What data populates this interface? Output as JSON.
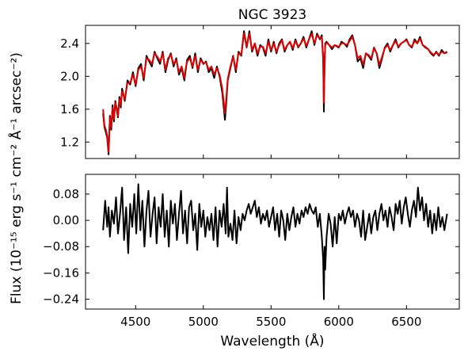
{
  "chart_data": [
    {
      "type": "line",
      "title": "NGC 3923",
      "xlabel": "",
      "ylabel": "",
      "xlim": [
        4130,
        6890
      ],
      "ylim": [
        1.0,
        2.62
      ],
      "xticks": [
        4500,
        5000,
        5500,
        6000,
        6500
      ],
      "yticks": [
        1.2,
        1.6,
        2.0,
        2.4
      ],
      "ytick_labels": [
        "1.2",
        "1.6",
        "2.0",
        "2.4"
      ],
      "shared_ylabel": "Flux (10⁻¹⁵ erg s⁻¹ cm⁻² Å⁻¹ arcsec⁻²)",
      "series": [
        {
          "color": "#000000",
          "x": [
            4260,
            4270,
            4280,
            4290,
            4300,
            4310,
            4320,
            4330,
            4340,
            4350,
            4360,
            4370,
            4380,
            4390,
            4400,
            4420,
            4440,
            4460,
            4480,
            4500,
            4520,
            4540,
            4560,
            4580,
            4600,
            4620,
            4640,
            4660,
            4680,
            4700,
            4720,
            4740,
            4760,
            4780,
            4800,
            4820,
            4840,
            4860,
            4870,
            4880,
            4900,
            4920,
            4940,
            4960,
            4980,
            5000,
            5020,
            5040,
            5060,
            5080,
            5100,
            5120,
            5140,
            5160,
            5170,
            5180,
            5200,
            5220,
            5240,
            5260,
            5280,
            5300,
            5320,
            5340,
            5360,
            5380,
            5400,
            5420,
            5440,
            5460,
            5480,
            5500,
            5520,
            5540,
            5560,
            5580,
            5600,
            5620,
            5640,
            5660,
            5680,
            5700,
            5720,
            5740,
            5760,
            5780,
            5800,
            5820,
            5840,
            5860,
            5875,
            5885,
            5890,
            5895,
            5900,
            5910,
            5930,
            5950,
            5970,
            6000,
            6020,
            6040,
            6060,
            6080,
            6100,
            6120,
            6140,
            6160,
            6180,
            6200,
            6220,
            6240,
            6260,
            6280,
            6300,
            6320,
            6340,
            6360,
            6380,
            6400,
            6420,
            6440,
            6460,
            6480,
            6500,
            6520,
            6540,
            6560,
            6580,
            6600,
            6620,
            6640,
            6660,
            6680,
            6700,
            6720,
            6740,
            6760,
            6780,
            6800
          ],
          "values": [
            1.55,
            1.38,
            1.32,
            1.25,
            1.05,
            1.52,
            1.35,
            1.65,
            1.45,
            1.7,
            1.6,
            1.5,
            1.75,
            1.62,
            1.85,
            1.7,
            1.95,
            1.9,
            2.05,
            1.88,
            2.1,
            2.15,
            1.95,
            2.25,
            2.18,
            2.12,
            2.3,
            2.22,
            2.15,
            2.3,
            2.05,
            2.2,
            2.28,
            2.12,
            2.22,
            2.02,
            2.1,
            1.95,
            2.08,
            2.2,
            2.25,
            2.1,
            2.28,
            2.05,
            2.22,
            2.15,
            2.18,
            2.05,
            2.1,
            1.98,
            2.12,
            2.0,
            1.8,
            1.47,
            1.7,
            1.95,
            2.1,
            2.25,
            2.05,
            2.3,
            2.25,
            2.55,
            2.35,
            2.55,
            2.3,
            2.4,
            2.25,
            2.38,
            2.35,
            2.25,
            2.45,
            2.3,
            2.42,
            2.28,
            2.4,
            2.45,
            2.3,
            2.38,
            2.42,
            2.32,
            2.45,
            2.35,
            2.4,
            2.48,
            2.35,
            2.45,
            2.55,
            2.38,
            2.52,
            2.45,
            2.5,
            2.2,
            1.57,
            2.1,
            2.4,
            2.42,
            2.38,
            2.33,
            2.38,
            2.35,
            2.42,
            2.4,
            2.36,
            2.45,
            2.5,
            2.38,
            2.18,
            2.22,
            2.1,
            2.28,
            2.25,
            2.2,
            2.35,
            2.28,
            2.1,
            2.22,
            2.35,
            2.4,
            2.3,
            2.38,
            2.45,
            2.35,
            2.4,
            2.42,
            2.45,
            2.38,
            2.35,
            2.45,
            2.4,
            2.48,
            2.38,
            2.35,
            2.33,
            2.28,
            2.25,
            2.3,
            2.25,
            2.32,
            2.28,
            2.3
          ]
        },
        {
          "color": "#e00000",
          "x": [
            4260,
            4270,
            4280,
            4290,
            4300,
            4310,
            4320,
            4330,
            4340,
            4350,
            4360,
            4370,
            4380,
            4390,
            4400,
            4420,
            4440,
            4460,
            4480,
            4500,
            4520,
            4540,
            4560,
            4580,
            4600,
            4620,
            4640,
            4660,
            4680,
            4700,
            4720,
            4740,
            4760,
            4780,
            4800,
            4820,
            4840,
            4860,
            4870,
            4880,
            4900,
            4920,
            4940,
            4960,
            4980,
            5000,
            5020,
            5040,
            5060,
            5080,
            5100,
            5120,
            5140,
            5160,
            5170,
            5180,
            5200,
            5220,
            5240,
            5260,
            5280,
            5300,
            5320,
            5340,
            5360,
            5380,
            5400,
            5420,
            5440,
            5460,
            5480,
            5500,
            5520,
            5540,
            5560,
            5580,
            5600,
            5620,
            5640,
            5660,
            5680,
            5700,
            5720,
            5740,
            5760,
            5780,
            5800,
            5820,
            5840,
            5860,
            5875,
            5885,
            5890,
            5895,
            5900,
            5910,
            5930,
            5950,
            5970,
            6000,
            6020,
            6040,
            6060,
            6080,
            6100,
            6120,
            6140,
            6160,
            6180,
            6200,
            6220,
            6240,
            6260,
            6280,
            6300,
            6320,
            6340,
            6360,
            6380,
            6400,
            6420,
            6440,
            6460,
            6480,
            6500,
            6520,
            6540,
            6560,
            6580,
            6600,
            6620,
            6640,
            6660,
            6680,
            6700,
            6720,
            6740,
            6760,
            6780,
            6800
          ],
          "values": [
            1.6,
            1.4,
            1.35,
            1.28,
            1.08,
            1.5,
            1.38,
            1.62,
            1.48,
            1.68,
            1.62,
            1.52,
            1.72,
            1.65,
            1.82,
            1.72,
            1.92,
            1.92,
            2.02,
            1.9,
            2.08,
            2.12,
            1.98,
            2.22,
            2.2,
            2.15,
            2.28,
            2.24,
            2.18,
            2.28,
            2.08,
            2.22,
            2.26,
            2.15,
            2.2,
            2.05,
            2.12,
            1.98,
            2.1,
            2.18,
            2.22,
            2.12,
            2.25,
            2.08,
            2.2,
            2.16,
            2.17,
            2.08,
            2.12,
            2.02,
            2.1,
            2.02,
            1.85,
            1.55,
            1.75,
            1.97,
            2.12,
            2.24,
            2.08,
            2.28,
            2.26,
            2.52,
            2.36,
            2.52,
            2.32,
            2.4,
            2.28,
            2.36,
            2.36,
            2.28,
            2.42,
            2.32,
            2.4,
            2.3,
            2.38,
            2.44,
            2.32,
            2.38,
            2.42,
            2.34,
            2.43,
            2.36,
            2.4,
            2.46,
            2.37,
            2.45,
            2.52,
            2.4,
            2.5,
            2.46,
            2.48,
            2.25,
            1.68,
            2.12,
            2.38,
            2.41,
            2.38,
            2.35,
            2.38,
            2.36,
            2.4,
            2.4,
            2.38,
            2.43,
            2.48,
            2.38,
            2.22,
            2.25,
            2.14,
            2.28,
            2.26,
            2.22,
            2.34,
            2.28,
            2.14,
            2.24,
            2.34,
            2.38,
            2.32,
            2.38,
            2.43,
            2.36,
            2.4,
            2.42,
            2.44,
            2.38,
            2.36,
            2.43,
            2.4,
            2.46,
            2.38,
            2.36,
            2.33,
            2.29,
            2.26,
            2.29,
            2.26,
            2.3,
            2.28,
            2.29
          ]
        }
      ]
    },
    {
      "type": "line",
      "title": "",
      "xlabel": "Wavelength (Å)",
      "ylabel": "",
      "xlim": [
        4130,
        6890
      ],
      "ylim": [
        -0.27,
        0.14
      ],
      "xticks": [
        4500,
        5000,
        5500,
        6000,
        6500
      ],
      "xtick_labels": [
        "4500",
        "5000",
        "5500",
        "6000",
        "6500"
      ],
      "yticks": [
        -0.24,
        -0.16,
        -0.08,
        0.0,
        0.08
      ],
      "ytick_labels": [
        "−0.24",
        "−0.16",
        "−0.08",
        "0.00",
        "0.08"
      ],
      "series": [
        {
          "color": "#000000",
          "x": [
            4260,
            4275,
            4290,
            4300,
            4310,
            4325,
            4340,
            4355,
            4370,
            4385,
            4400,
            4415,
            4430,
            4445,
            4460,
            4475,
            4490,
            4505,
            4520,
            4535,
            4550,
            4565,
            4580,
            4595,
            4610,
            4625,
            4640,
            4655,
            4670,
            4685,
            4700,
            4715,
            4730,
            4745,
            4760,
            4775,
            4790,
            4805,
            4820,
            4835,
            4850,
            4865,
            4880,
            4895,
            4910,
            4925,
            4940,
            4955,
            4970,
            4985,
            5000,
            5015,
            5030,
            5045,
            5060,
            5075,
            5090,
            5105,
            5120,
            5135,
            5150,
            5165,
            5175,
            5185,
            5200,
            5215,
            5230,
            5245,
            5260,
            5275,
            5290,
            5305,
            5320,
            5335,
            5350,
            5365,
            5380,
            5395,
            5410,
            5425,
            5440,
            5455,
            5470,
            5485,
            5500,
            5515,
            5530,
            5545,
            5560,
            5575,
            5590,
            5605,
            5620,
            5635,
            5650,
            5665,
            5680,
            5695,
            5710,
            5725,
            5740,
            5755,
            5770,
            5785,
            5800,
            5815,
            5830,
            5845,
            5860,
            5875,
            5885,
            5890,
            5895,
            5900,
            5910,
            5925,
            5940,
            5955,
            5970,
            5985,
            6000,
            6015,
            6030,
            6045,
            6060,
            6075,
            6090,
            6105,
            6120,
            6135,
            6150,
            6165,
            6180,
            6195,
            6210,
            6225,
            6240,
            6255,
            6270,
            6285,
            6300,
            6315,
            6330,
            6345,
            6360,
            6375,
            6390,
            6405,
            6420,
            6435,
            6450,
            6465,
            6480,
            6495,
            6510,
            6525,
            6540,
            6555,
            6570,
            6585,
            6600,
            6615,
            6630,
            6645,
            6660,
            6675,
            6690,
            6705,
            6720,
            6735,
            6750,
            6765,
            6780,
            6800
          ],
          "values": [
            -0.03,
            0.06,
            -0.02,
            0.04,
            -0.05,
            0.03,
            -0.01,
            0.07,
            -0.04,
            0.02,
            0.1,
            -0.06,
            0.04,
            -0.1,
            0.05,
            -0.02,
            0.08,
            -0.04,
            0.11,
            -0.03,
            0.06,
            -0.08,
            0.03,
            0.09,
            -0.05,
            0.02,
            0.07,
            -0.07,
            0.04,
            -0.02,
            0.08,
            -0.05,
            0.03,
            -0.08,
            0.06,
            -0.01,
            0.05,
            -0.06,
            0.02,
            0.09,
            -0.04,
            0.03,
            -0.07,
            0.04,
            0.06,
            -0.03,
            0.02,
            -0.09,
            0.05,
            -0.02,
            0.03,
            -0.05,
            0.01,
            -0.03,
            0.02,
            -0.06,
            0.04,
            -0.08,
            0.03,
            -0.02,
            0.05,
            -0.04,
            0.1,
            -0.05,
            -0.01,
            -0.06,
            0.03,
            -0.07,
            0.01,
            -0.03,
            0.02,
            0.0,
            0.03,
            0.05,
            0.02,
            0.04,
            0.06,
            0.01,
            0.04,
            -0.01,
            0.02,
            0.0,
            0.03,
            -0.02,
            0.01,
            0.04,
            -0.03,
            0.02,
            -0.05,
            0.03,
            0.0,
            -0.06,
            0.02,
            -0.03,
            0.01,
            0.04,
            -0.02,
            0.02,
            -0.01,
            0.03,
            0.01,
            0.04,
            0.02,
            0.05,
            0.03,
            0.02,
            0.04,
            -0.02,
            0.02,
            -0.05,
            -0.12,
            -0.24,
            -0.08,
            -0.15,
            -0.05,
            0.02,
            -0.01,
            -0.08,
            0.01,
            -0.07,
            0.02,
            0.0,
            0.03,
            -0.01,
            0.02,
            0.04,
            0.01,
            0.03,
            -0.02,
            0.02,
            0.0,
            -0.05,
            0.03,
            -0.06,
            -0.02,
            0.02,
            -0.04,
            0.01,
            0.03,
            -0.03,
            0.02,
            0.05,
            0.0,
            0.03,
            -0.02,
            0.04,
            0.01,
            -0.03,
            0.05,
            0.02,
            0.06,
            -0.01,
            0.04,
            0.07,
            0.02,
            -0.02,
            0.03,
            0.06,
            0.01,
            0.1,
            0.03,
            0.07,
            0.0,
            0.05,
            -0.02,
            0.03,
            -0.04,
            0.02,
            -0.03,
            0.04,
            -0.02,
            0.01,
            -0.03,
            0.02
          ]
        }
      ]
    }
  ]
}
